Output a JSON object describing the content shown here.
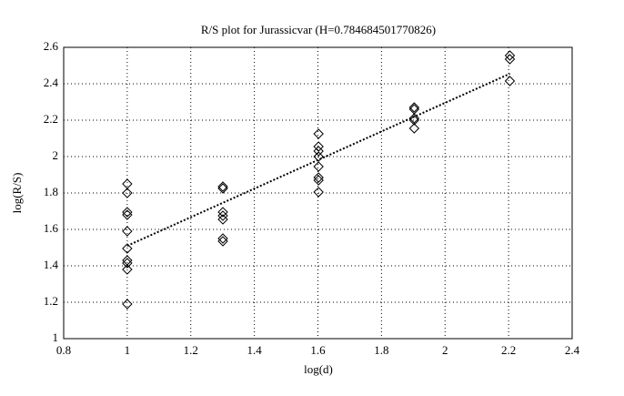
{
  "chart_data": {
    "type": "scatter",
    "title": "R/S plot for Jurassicvar (H=0.784684501770826)",
    "x_label": "log(d)",
    "y_label": "log(R/S)",
    "xlim": [
      0.8,
      2.4
    ],
    "xticks": [
      0.8,
      1,
      1.2,
      1.4,
      1.6,
      1.8,
      2,
      2.2,
      2.4
    ],
    "ylim": [
      1,
      2.6
    ],
    "yticks": [
      1,
      1.2,
      1.4,
      1.6,
      1.8,
      2,
      2.2,
      2.4,
      2.6
    ],
    "grid": true,
    "series": [
      {
        "style": "diamond",
        "color": "#000000",
        "x": [
          1,
          1,
          1,
          1,
          1,
          1,
          1,
          1,
          1,
          1,
          1.301,
          1.301,
          1.301,
          1.301,
          1.301,
          1.301,
          1.301,
          1.602,
          1.602,
          1.602,
          1.602,
          1.602,
          1.602,
          1.602,
          1.602,
          1.903,
          1.903,
          1.903,
          1.903,
          1.903,
          2.204,
          2.204,
          2.204
        ],
        "values": [
          1.85,
          1.8,
          1.695,
          1.68,
          1.59,
          1.495,
          1.43,
          1.415,
          1.38,
          1.19,
          1.835,
          1.825,
          1.695,
          1.675,
          1.655,
          1.55,
          1.535,
          2.125,
          2.055,
          2.03,
          2.0,
          1.945,
          1.885,
          1.87,
          1.805,
          2.27,
          2.26,
          2.21,
          2.2,
          2.155,
          2.555,
          2.535,
          2.415
        ]
      },
      {
        "style": "dotted",
        "color": "#000000",
        "x": [
          1,
          2.204
        ],
        "values": [
          1.51,
          2.455
        ]
      }
    ]
  }
}
